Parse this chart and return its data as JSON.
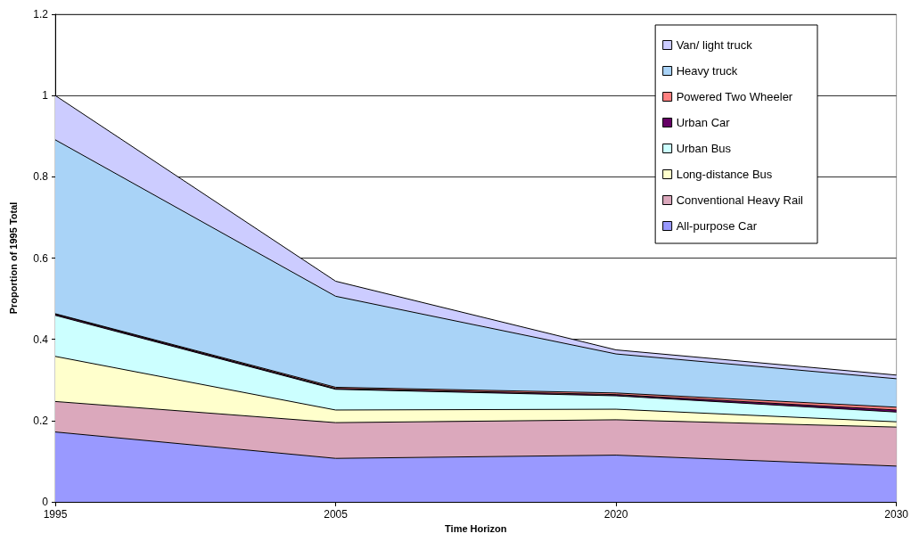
{
  "chart_data": {
    "type": "area",
    "stacked": true,
    "xlabel": "Time Horizon",
    "ylabel": "Proportion of 1995 Total",
    "categories": [
      "1995",
      "2005",
      "2020",
      "2030"
    ],
    "ylim": [
      0,
      1.2
    ],
    "yticks": [
      0,
      0.2,
      0.4,
      0.6,
      0.8,
      1,
      1.2
    ],
    "grid": "y",
    "legend": "top right",
    "series": [
      {
        "name": "All-purpose Car",
        "color": "#9999ff",
        "values": [
          0.172,
          0.107,
          0.115,
          0.088
        ]
      },
      {
        "name": "Conventional Heavy Rail",
        "color": "#dba8bc",
        "values": [
          0.075,
          0.088,
          0.087,
          0.096
        ]
      },
      {
        "name": "Long-distance Bus",
        "color": "#ffffcc",
        "values": [
          0.111,
          0.031,
          0.026,
          0.013
        ]
      },
      {
        "name": "Urban Bus",
        "color": "#ccffff",
        "values": [
          0.101,
          0.051,
          0.033,
          0.024
        ]
      },
      {
        "name": "Urban Car",
        "color": "#660066",
        "values": [
          0.003,
          0.002,
          0.003,
          0.005
        ]
      },
      {
        "name": "Powered Two Wheeler",
        "color": "#ff8080",
        "values": [
          0.001,
          0.003,
          0.004,
          0.007
        ]
      },
      {
        "name": "Heavy truck",
        "color": "#a9d3f7",
        "values": [
          0.428,
          0.224,
          0.096,
          0.07
        ]
      },
      {
        "name": "Van/ light truck",
        "color": "#ccccff",
        "values": [
          0.109,
          0.037,
          0.01,
          0.009
        ]
      }
    ]
  }
}
